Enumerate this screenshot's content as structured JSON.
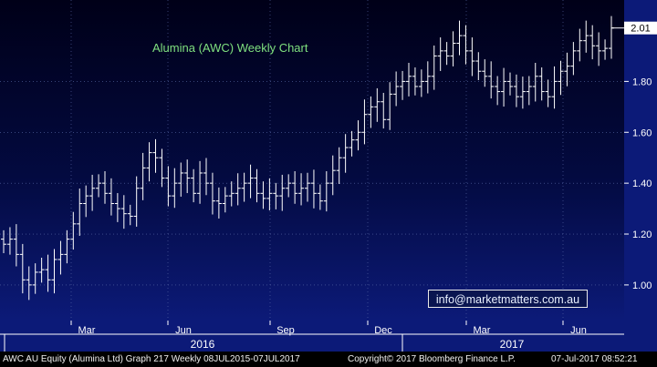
{
  "chart_title": "Alumina (AWC) Weekly Chart",
  "contact_email": "info@marketmatters.com.au",
  "footer": {
    "ticker_info": "AWC AU Equity (Alumina Ltd) Graph 217  Weekly 08JUL2015-07JUL2017",
    "copyright": "Copyright© 2017 Bloomberg Finance L.P.",
    "timestamp": "07-Jul-2017 08:52:21"
  },
  "colors": {
    "background_top": "#000018",
    "background_bottom": "#0c1a78",
    "bars": "#ffffff",
    "title_text": "#7fe07f",
    "last_price_box": "#ffffff"
  },
  "chart_data": {
    "type": "ohlc",
    "title": "Alumina (AWC) Weekly Chart",
    "x_tick_labels": [
      "Mar",
      "Jun",
      "Sep",
      "Dec",
      "Mar",
      "Jun"
    ],
    "x_year_labels": [
      "2016",
      "2017"
    ],
    "y_ticks": [
      1.0,
      1.2,
      1.4,
      1.6,
      1.8
    ],
    "ylim": [
      0.86,
      2.12
    ],
    "last_price": 2.01,
    "last_price_label": "2.01",
    "grid": true,
    "series": [
      {
        "name": "AWC",
        "close": [
          1.16,
          1.18,
          1.12,
          1.02,
          1.0,
          1.05,
          1.06,
          1.02,
          1.1,
          1.12,
          1.18,
          1.24,
          1.32,
          1.35,
          1.38,
          1.4,
          1.36,
          1.32,
          1.3,
          1.28,
          1.27,
          1.38,
          1.46,
          1.52,
          1.5,
          1.42,
          1.35,
          1.4,
          1.44,
          1.42,
          1.36,
          1.44,
          1.4,
          1.33,
          1.32,
          1.35,
          1.36,
          1.38,
          1.4,
          1.42,
          1.36,
          1.34,
          1.36,
          1.35,
          1.38,
          1.4,
          1.36,
          1.38,
          1.4,
          1.36,
          1.33,
          1.4,
          1.45,
          1.5,
          1.54,
          1.57,
          1.6,
          1.67,
          1.7,
          1.72,
          1.65,
          1.75,
          1.78,
          1.8,
          1.82,
          1.78,
          1.8,
          1.82,
          1.9,
          1.92,
          1.9,
          1.95,
          1.98,
          1.92,
          1.88,
          1.84,
          1.82,
          1.78,
          1.76,
          1.8,
          1.78,
          1.74,
          1.76,
          1.78,
          1.82,
          1.76,
          1.74,
          1.8,
          1.84,
          1.86,
          1.92,
          1.96,
          1.98,
          1.94,
          1.92,
          1.93,
          2.01
        ]
      }
    ]
  }
}
